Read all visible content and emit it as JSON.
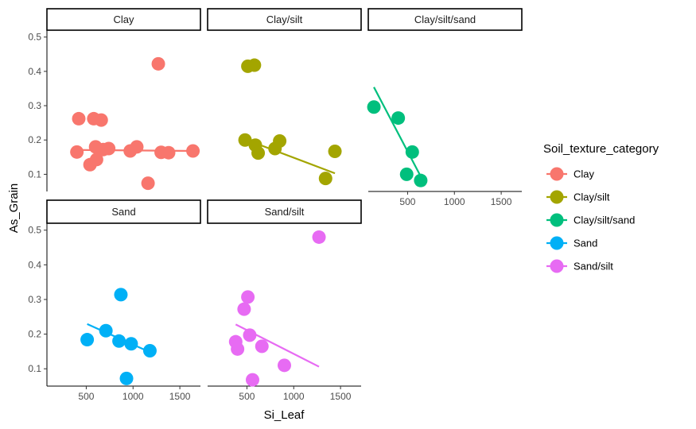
{
  "chart_data": {
    "type": "scatter",
    "xlabel": "Si_Leaf",
    "ylabel": "As_Grain",
    "xlim": [
      80,
      1720
    ],
    "ylim": [
      0.05,
      0.52
    ],
    "xticks": [
      500,
      1000,
      1500
    ],
    "yticks": [
      0.1,
      0.2,
      0.3,
      0.4,
      0.5
    ],
    "xtick_labels": [
      "500",
      "1000",
      "1500"
    ],
    "ytick_labels": [
      "0.1",
      "0.2",
      "0.3",
      "0.4",
      "0.5"
    ],
    "grid": false,
    "legend_position": "right",
    "legend_title": "Soil_texture_category",
    "facets": [
      {
        "name": "Clay",
        "color": "#F8766D",
        "points": [
          [
            400,
            0.165
          ],
          [
            420,
            0.262
          ],
          [
            540,
            0.128
          ],
          [
            580,
            0.262
          ],
          [
            600,
            0.18
          ],
          [
            610,
            0.143
          ],
          [
            660,
            0.258
          ],
          [
            680,
            0.172
          ],
          [
            740,
            0.175
          ],
          [
            970,
            0.168
          ],
          [
            1040,
            0.18
          ],
          [
            1160,
            0.074
          ],
          [
            1270,
            0.422
          ],
          [
            1300,
            0.164
          ],
          [
            1380,
            0.163
          ],
          [
            1640,
            0.168
          ]
        ],
        "trend": [
          [
            400,
            0.171
          ],
          [
            1640,
            0.168
          ]
        ]
      },
      {
        "name": "Clay/silt",
        "color": "#A3A500",
        "points": [
          [
            480,
            0.2
          ],
          [
            510,
            0.415
          ],
          [
            580,
            0.418
          ],
          [
            590,
            0.185
          ],
          [
            620,
            0.162
          ],
          [
            800,
            0.175
          ],
          [
            850,
            0.197
          ],
          [
            1340,
            0.088
          ],
          [
            1440,
            0.167
          ]
        ],
        "trend": [
          [
            480,
            0.202
          ],
          [
            1440,
            0.103
          ]
        ]
      },
      {
        "name": "Clay/silt/sand",
        "color": "#00BF7D",
        "points": [
          [
            140,
            0.296
          ],
          [
            400,
            0.264
          ],
          [
            490,
            0.1
          ],
          [
            550,
            0.165
          ],
          [
            640,
            0.082
          ]
        ],
        "trend": [
          [
            140,
            0.354
          ],
          [
            640,
            0.094
          ]
        ]
      },
      {
        "name": "Sand",
        "color": "#00B0F6",
        "points": [
          [
            510,
            0.184
          ],
          [
            710,
            0.21
          ],
          [
            850,
            0.18
          ],
          [
            870,
            0.314
          ],
          [
            930,
            0.072
          ],
          [
            980,
            0.172
          ],
          [
            1180,
            0.152
          ]
        ],
        "trend": [
          [
            510,
            0.229
          ],
          [
            1180,
            0.148
          ]
        ]
      },
      {
        "name": "Sand/silt",
        "color": "#E76BF3",
        "points": [
          [
            380,
            0.178
          ],
          [
            400,
            0.157
          ],
          [
            470,
            0.272
          ],
          [
            510,
            0.307
          ],
          [
            530,
            0.197
          ],
          [
            560,
            0.068
          ],
          [
            660,
            0.165
          ],
          [
            900,
            0.11
          ],
          [
            1270,
            0.48
          ]
        ],
        "trend": [
          [
            380,
            0.228
          ],
          [
            1270,
            0.106
          ]
        ]
      }
    ]
  }
}
